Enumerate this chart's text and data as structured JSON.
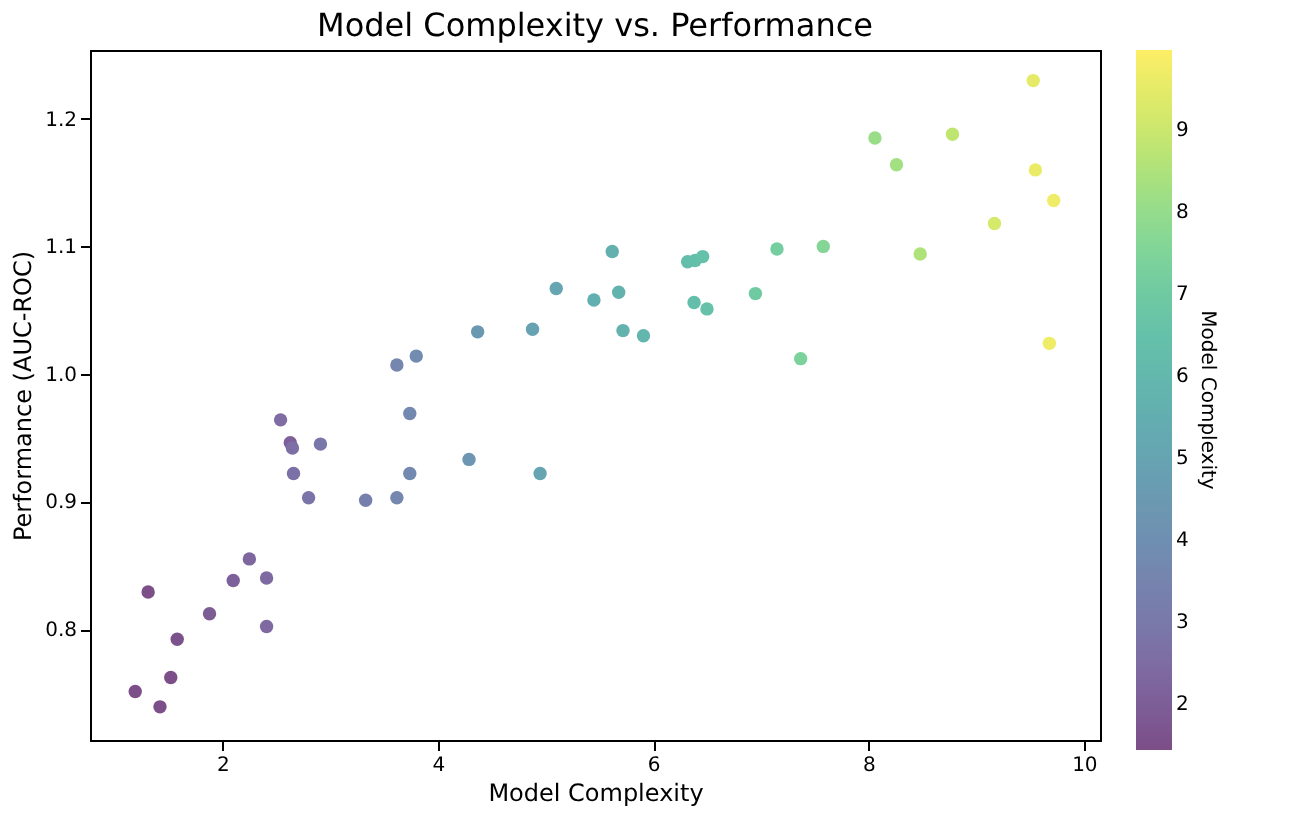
{
  "chart_data": {
    "type": "scatter",
    "title": "Model Complexity vs. Performance",
    "xlabel": "Model Complexity",
    "ylabel": "Performance (AUC-ROC)",
    "clabel": "Model Complexity",
    "x": [
      2.54,
      3.62,
      3.8,
      3.74,
      4.37,
      4.88,
      5.1,
      5.45,
      5.62,
      5.68,
      5.72,
      5.91,
      6.32,
      6.39,
      6.46,
      6.38,
      6.5,
      6.95,
      7.15,
      7.58,
      7.37,
      8.06,
      8.26,
      8.78,
      8.48,
      9.17,
      9.53,
      9.55,
      9.72,
      9.68,
      2.63,
      2.65,
      2.91,
      2.66,
      2.8,
      3.33,
      3.62,
      3.74,
      4.29,
      4.95,
      2.25,
      2.1,
      2.41,
      1.88,
      2.41,
      1.31,
      1.58,
      1.52,
      1.19,
      1.42
    ],
    "values": [
      0.964,
      1.007,
      1.014,
      0.969,
      1.033,
      1.035,
      1.067,
      1.058,
      1.096,
      1.064,
      1.034,
      1.03,
      1.088,
      1.089,
      1.092,
      1.056,
      1.051,
      1.063,
      1.098,
      1.1,
      1.012,
      1.185,
      1.164,
      1.188,
      1.094,
      1.118,
      1.23,
      1.16,
      1.136,
      1.024,
      0.946,
      0.942,
      0.945,
      0.922,
      0.903,
      0.901,
      0.903,
      0.922,
      0.933,
      0.922,
      0.855,
      0.838,
      0.84,
      0.812,
      0.802,
      0.829,
      0.792,
      0.762,
      0.751,
      0.739
    ],
    "cvalues": [
      2.5,
      3.6,
      3.8,
      3.7,
      4.4,
      4.9,
      5.1,
      5.5,
      5.6,
      5.7,
      5.7,
      5.9,
      6.3,
      6.4,
      6.5,
      6.4,
      6.5,
      7.0,
      7.2,
      7.6,
      7.4,
      8.1,
      8.3,
      8.8,
      8.5,
      9.2,
      9.5,
      9.6,
      9.7,
      9.7,
      2.1,
      2.6,
      2.9,
      2.7,
      2.8,
      3.3,
      3.6,
      3.7,
      4.3,
      5.0,
      2.3,
      2.1,
      2.4,
      1.9,
      2.4,
      1.5,
      1.6,
      1.5,
      1.5,
      1.5
    ],
    "xlim": [
      0.77,
      10.15
    ],
    "xticks": [
      2,
      4,
      6,
      8,
      10
    ],
    "ylim": [
      0.713,
      1.254
    ],
    "yticks": [
      0.8,
      0.9,
      {
        "value": 1.0,
        "label": "1.0"
      },
      1.1,
      1.2
    ],
    "clim": [
      1.44,
      9.97
    ],
    "cticks": [
      2,
      3,
      4,
      5,
      6,
      7,
      8,
      9
    ],
    "marker": "circle",
    "grid": false
  }
}
